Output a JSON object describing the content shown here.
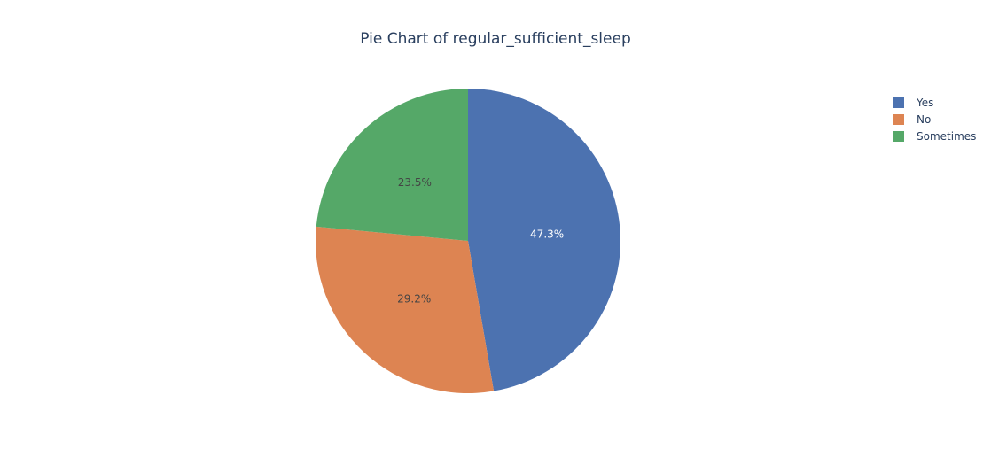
{
  "chart_data": {
    "type": "pie",
    "title": "Pie Chart of regular_sufficient_sleep",
    "slices": [
      {
        "label": "Yes",
        "percent": 47.3,
        "percent_text": "47.3%",
        "color": "#4c72b0",
        "text_color": "#ffffff"
      },
      {
        "label": "No",
        "percent": 29.2,
        "percent_text": "29.2%",
        "color": "#dd8452",
        "text_color": "#444444"
      },
      {
        "label": "Sometimes",
        "percent": 23.5,
        "percent_text": "23.5%",
        "color": "#55a868",
        "text_color": "#444444"
      }
    ],
    "legend_position": "top-right",
    "direction": "clockwise",
    "start_angle": "top"
  }
}
